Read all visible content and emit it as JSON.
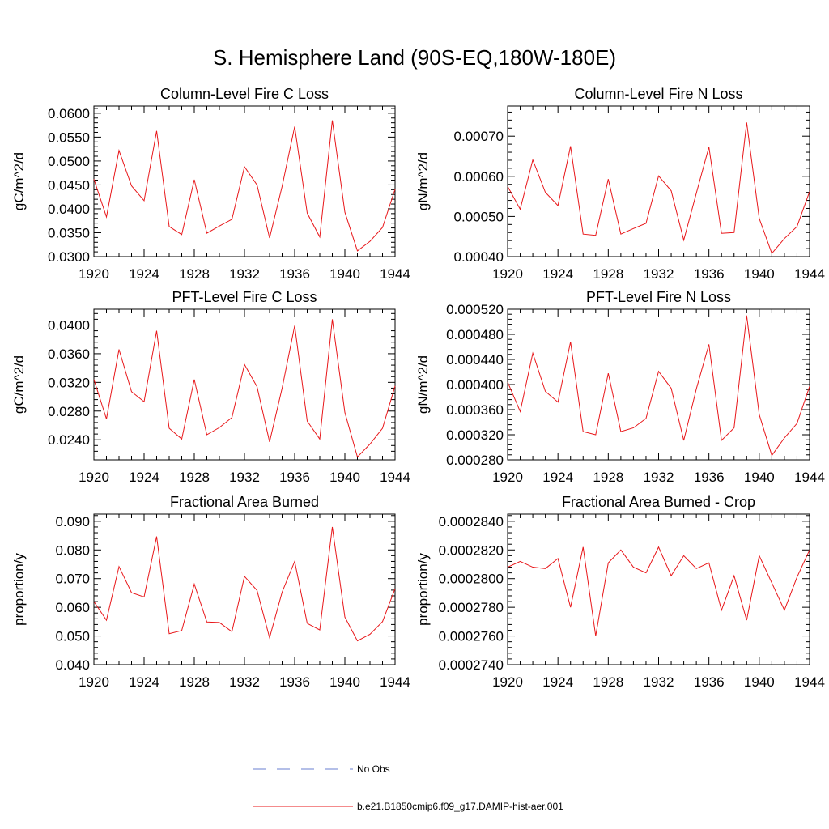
{
  "page": {
    "title": "S. Hemisphere Land (90S-EQ,180W-180E)"
  },
  "legend": {
    "entries": [
      {
        "label": "No Obs",
        "color": "#6a7fd1",
        "style": "dashed"
      },
      {
        "label": "b.e21.B1850cmip6.f09_g17.DAMIP-hist-aer.001",
        "color": "#e8171a",
        "style": "solid"
      }
    ]
  },
  "chart_data": [
    {
      "type": "line",
      "title": "Column-Level Fire C Loss",
      "ylabel": "gC/m^2/d",
      "xlabel": "",
      "xlim": [
        1920,
        1944
      ],
      "ylim": [
        0.03,
        0.0615
      ],
      "xticks": [
        "1920",
        "1924",
        "1928",
        "1932",
        "1936",
        "1940",
        "1944"
      ],
      "yticks": [
        {
          "value": 0.03,
          "label": "0.0300"
        },
        {
          "value": 0.035,
          "label": "0.0350"
        },
        {
          "value": 0.04,
          "label": "0.0400"
        },
        {
          "value": 0.045,
          "label": "0.0450"
        },
        {
          "value": 0.05,
          "label": "0.0500"
        },
        {
          "value": 0.055,
          "label": "0.0550"
        },
        {
          "value": 0.06,
          "label": "0.0600"
        }
      ],
      "x": [
        1920,
        1921,
        1922,
        1923,
        1924,
        1925,
        1926,
        1927,
        1928,
        1929,
        1930,
        1931,
        1932,
        1933,
        1934,
        1935,
        1936,
        1937,
        1938,
        1939,
        1940,
        1941,
        1942,
        1943,
        1944
      ],
      "series": [
        {
          "name": "b.e21.B1850cmip6.f09_g17.DAMIP-hist-aer.001",
          "color": "#e8171a",
          "values": [
            0.0462,
            0.0383,
            0.0522,
            0.0448,
            0.0417,
            0.0563,
            0.0363,
            0.0346,
            0.0461,
            0.0349,
            0.0364,
            0.0378,
            0.0488,
            0.045,
            0.0339,
            0.0447,
            0.0572,
            0.0391,
            0.0341,
            0.0585,
            0.0393,
            0.0312,
            0.0332,
            0.0361,
            0.0441
          ]
        }
      ]
    },
    {
      "type": "line",
      "title": "Column-Level Fire N Loss",
      "ylabel": "gN/m^2/d",
      "xlabel": "",
      "xlim": [
        1920,
        1944
      ],
      "ylim": [
        0.0004,
        0.000775
      ],
      "xticks": [
        "1920",
        "1924",
        "1928",
        "1932",
        "1936",
        "1940",
        "1944"
      ],
      "yticks": [
        {
          "value": 0.0004,
          "label": "0.00040"
        },
        {
          "value": 0.0005,
          "label": "0.00050"
        },
        {
          "value": 0.0006,
          "label": "0.00060"
        },
        {
          "value": 0.0007,
          "label": "0.00070"
        }
      ],
      "x": [
        1920,
        1921,
        1922,
        1923,
        1924,
        1925,
        1926,
        1927,
        1928,
        1929,
        1930,
        1931,
        1932,
        1933,
        1934,
        1935,
        1936,
        1937,
        1938,
        1939,
        1940,
        1941,
        1942,
        1943,
        1944
      ],
      "series": [
        {
          "name": "b.e21.B1850cmip6.f09_g17.DAMIP-hist-aer.001",
          "color": "#e8171a",
          "values": [
            0.000575,
            0.000518,
            0.000641,
            0.00056,
            0.000527,
            0.000675,
            0.000456,
            0.000453,
            0.000593,
            0.000456,
            0.00047,
            0.000483,
            0.000601,
            0.000564,
            0.000441,
            0.000558,
            0.000673,
            0.000458,
            0.00046,
            0.000734,
            0.000495,
            0.000408,
            0.000445,
            0.000475,
            0.000562
          ]
        }
      ]
    },
    {
      "type": "line",
      "title": "PFT-Level Fire C Loss",
      "ylabel": "gC/m^2/d",
      "xlabel": "",
      "xlim": [
        1920,
        1944
      ],
      "ylim": [
        0.0212,
        0.0422
      ],
      "xticks": [
        "1920",
        "1924",
        "1928",
        "1932",
        "1936",
        "1940",
        "1944"
      ],
      "yticks": [
        {
          "value": 0.024,
          "label": "0.0240"
        },
        {
          "value": 0.028,
          "label": "0.0280"
        },
        {
          "value": 0.032,
          "label": "0.0320"
        },
        {
          "value": 0.036,
          "label": "0.0360"
        },
        {
          "value": 0.04,
          "label": "0.0400"
        }
      ],
      "x": [
        1920,
        1921,
        1922,
        1923,
        1924,
        1925,
        1926,
        1927,
        1928,
        1929,
        1930,
        1931,
        1932,
        1933,
        1934,
        1935,
        1936,
        1937,
        1938,
        1939,
        1940,
        1941,
        1942,
        1943,
        1944
      ],
      "series": [
        {
          "name": "b.e21.B1850cmip6.f09_g17.DAMIP-hist-aer.001",
          "color": "#e8171a",
          "values": [
            0.0324,
            0.0269,
            0.0366,
            0.0307,
            0.0293,
            0.0392,
            0.0256,
            0.0241,
            0.0324,
            0.0247,
            0.0257,
            0.0271,
            0.0345,
            0.0314,
            0.0237,
            0.0312,
            0.0399,
            0.0266,
            0.0241,
            0.0408,
            0.0278,
            0.0216,
            0.0234,
            0.0256,
            0.0315
          ]
        }
      ]
    },
    {
      "type": "line",
      "title": "PFT-Level Fire N Loss",
      "ylabel": "gN/m^2/d",
      "xlabel": "",
      "xlim": [
        1920,
        1944
      ],
      "ylim": [
        0.00028,
        0.00052
      ],
      "xticks": [
        "1920",
        "1924",
        "1928",
        "1932",
        "1936",
        "1940",
        "1944"
      ],
      "yticks": [
        {
          "value": 0.00028,
          "label": "0.000280"
        },
        {
          "value": 0.00032,
          "label": "0.000320"
        },
        {
          "value": 0.00036,
          "label": "0.000360"
        },
        {
          "value": 0.0004,
          "label": "0.000400"
        },
        {
          "value": 0.00044,
          "label": "0.000440"
        },
        {
          "value": 0.00048,
          "label": "0.000480"
        },
        {
          "value": 0.00052,
          "label": "0.000520"
        }
      ],
      "x": [
        1920,
        1921,
        1922,
        1923,
        1924,
        1925,
        1926,
        1927,
        1928,
        1929,
        1930,
        1931,
        1932,
        1933,
        1934,
        1935,
        1936,
        1937,
        1938,
        1939,
        1940,
        1941,
        1942,
        1943,
        1944
      ],
      "series": [
        {
          "name": "b.e21.B1850cmip6.f09_g17.DAMIP-hist-aer.001",
          "color": "#e8171a",
          "values": [
            0.000404,
            0.000357,
            0.00045,
            0.000389,
            0.000372,
            0.000468,
            0.000325,
            0.00032,
            0.000418,
            0.000325,
            0.000331,
            0.000346,
            0.000421,
            0.000394,
            0.000311,
            0.000393,
            0.000464,
            0.000311,
            0.000331,
            0.00051,
            0.000352,
            0.000287,
            0.000315,
            0.000338,
            0.000397
          ]
        }
      ]
    },
    {
      "type": "line",
      "title": "Fractional Area Burned",
      "ylabel": "proportion/y",
      "xlabel": "",
      "xlim": [
        1920,
        1944
      ],
      "ylim": [
        0.04,
        0.0925
      ],
      "xticks": [
        "1920",
        "1924",
        "1928",
        "1932",
        "1936",
        "1940",
        "1944"
      ],
      "yticks": [
        {
          "value": 0.04,
          "label": "0.040"
        },
        {
          "value": 0.05,
          "label": "0.050"
        },
        {
          "value": 0.06,
          "label": "0.060"
        },
        {
          "value": 0.07,
          "label": "0.070"
        },
        {
          "value": 0.08,
          "label": "0.080"
        },
        {
          "value": 0.09,
          "label": "0.090"
        }
      ],
      "x": [
        1920,
        1921,
        1922,
        1923,
        1924,
        1925,
        1926,
        1927,
        1928,
        1929,
        1930,
        1931,
        1932,
        1933,
        1934,
        1935,
        1936,
        1937,
        1938,
        1939,
        1940,
        1941,
        1942,
        1943,
        1944
      ],
      "series": [
        {
          "name": "b.e21.B1850cmip6.f09_g17.DAMIP-hist-aer.001",
          "color": "#e8171a",
          "values": [
            0.062,
            0.0555,
            0.0742,
            0.0651,
            0.0636,
            0.0847,
            0.0508,
            0.0519,
            0.0681,
            0.0549,
            0.0547,
            0.0515,
            0.0708,
            0.0659,
            0.0494,
            0.0653,
            0.076,
            0.0544,
            0.0521,
            0.088,
            0.0566,
            0.0483,
            0.0506,
            0.055,
            0.0665
          ]
        }
      ]
    },
    {
      "type": "line",
      "title": "Fractional Area Burned - Crop",
      "ylabel": "proportion/y",
      "xlabel": "",
      "xlim": [
        1920,
        1944
      ],
      "ylim": [
        0.000274,
        0.0002845
      ],
      "xticks": [
        "1920",
        "1924",
        "1928",
        "1932",
        "1936",
        "1940",
        "1944"
      ],
      "yticks": [
        {
          "value": 0.000274,
          "label": "0.0002740"
        },
        {
          "value": 0.000276,
          "label": "0.0002760"
        },
        {
          "value": 0.000278,
          "label": "0.0002780"
        },
        {
          "value": 0.00028,
          "label": "0.0002800"
        },
        {
          "value": 0.000282,
          "label": "0.0002820"
        },
        {
          "value": 0.000284,
          "label": "0.0002840"
        }
      ],
      "x": [
        1920,
        1921,
        1922,
        1923,
        1924,
        1925,
        1926,
        1927,
        1928,
        1929,
        1930,
        1931,
        1932,
        1933,
        1934,
        1935,
        1936,
        1937,
        1938,
        1939,
        1940,
        1941,
        1942,
        1943,
        1944
      ],
      "series": [
        {
          "name": "b.e21.B1850cmip6.f09_g17.DAMIP-hist-aer.001",
          "color": "#e8171a",
          "values": [
            0.0002808,
            0.0002812,
            0.0002808,
            0.0002807,
            0.0002814,
            0.000278,
            0.0002822,
            0.000276,
            0.0002811,
            0.000282,
            0.0002808,
            0.0002804,
            0.0002822,
            0.0002802,
            0.0002816,
            0.0002807,
            0.0002811,
            0.0002778,
            0.0002802,
            0.0002771,
            0.0002816,
            0.0002797,
            0.0002778,
            0.0002801,
            0.000282
          ]
        }
      ]
    }
  ]
}
